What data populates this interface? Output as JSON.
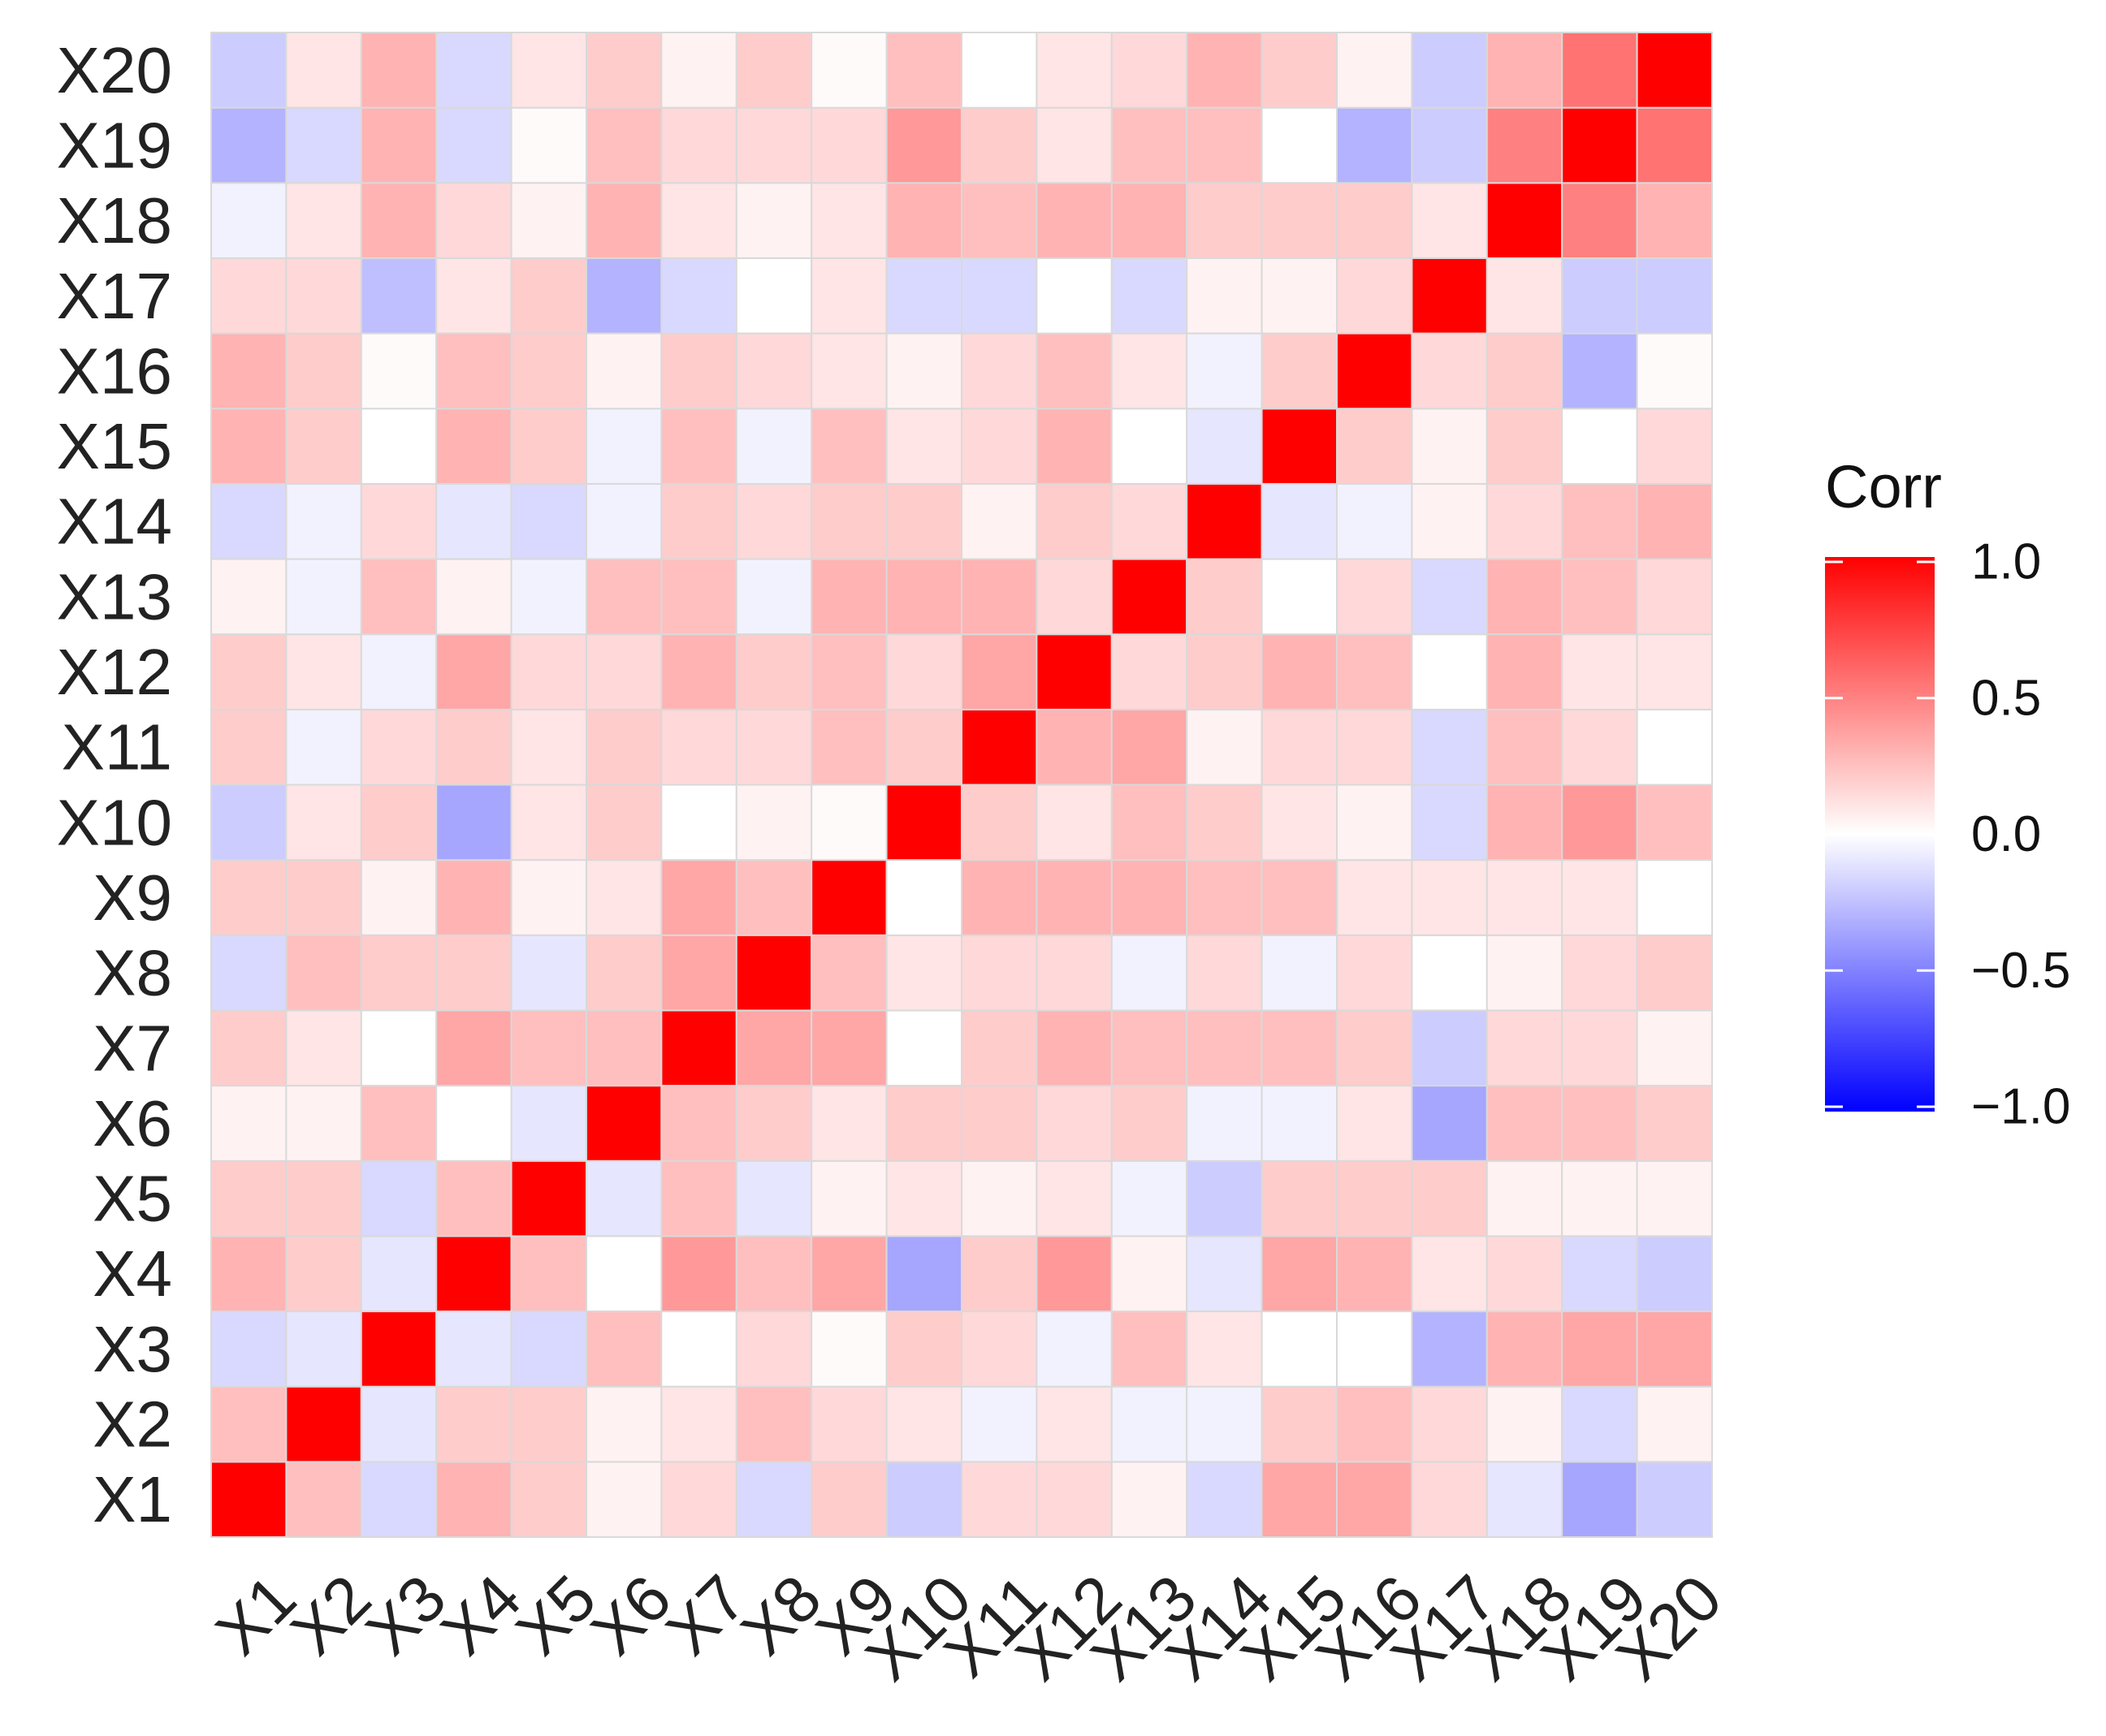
{
  "chart_data": {
    "type": "heatmap",
    "title": "",
    "xlabel": "",
    "ylabel": "",
    "x_labels": [
      "X1",
      "X2",
      "X3",
      "X4",
      "X5",
      "X6",
      "X7",
      "X8",
      "X9",
      "X10",
      "X11",
      "X12",
      "X13",
      "X14",
      "X15",
      "X16",
      "X17",
      "X18",
      "X19",
      "X20"
    ],
    "y_labels": [
      "X1",
      "X2",
      "X3",
      "X4",
      "X5",
      "X6",
      "X7",
      "X8",
      "X9",
      "X10",
      "X11",
      "X12",
      "X13",
      "X14",
      "X15",
      "X16",
      "X17",
      "X18",
      "X19",
      "X20"
    ],
    "values": [
      [
        1.0,
        0.25,
        -0.15,
        0.3,
        0.2,
        0.05,
        0.15,
        -0.15,
        0.2,
        -0.2,
        0.15,
        0.15,
        0.05,
        -0.15,
        0.35,
        0.35,
        0.15,
        -0.1,
        -0.35,
        -0.2
      ],
      [
        0.25,
        1.0,
        -0.1,
        0.2,
        0.2,
        0.05,
        0.1,
        0.25,
        0.15,
        0.1,
        -0.05,
        0.1,
        -0.05,
        -0.05,
        0.2,
        0.25,
        0.15,
        0.05,
        -0.15,
        0.05
      ],
      [
        -0.15,
        -0.1,
        1.0,
        -0.1,
        -0.15,
        0.25,
        0.0,
        0.15,
        0.02,
        0.2,
        0.15,
        -0.05,
        0.25,
        0.1,
        0.0,
        0.0,
        -0.3,
        0.3,
        0.35,
        0.35
      ],
      [
        0.3,
        0.2,
        -0.1,
        1.0,
        0.25,
        0.0,
        0.4,
        0.25,
        0.35,
        -0.35,
        0.2,
        0.4,
        0.05,
        -0.1,
        0.35,
        0.3,
        0.1,
        0.15,
        -0.15,
        -0.2
      ],
      [
        0.2,
        0.2,
        -0.15,
        0.25,
        1.0,
        -0.1,
        0.25,
        -0.1,
        0.05,
        0.1,
        0.05,
        0.1,
        -0.05,
        -0.2,
        0.2,
        0.2,
        0.2,
        0.05,
        0.05,
        0.05
      ],
      [
        0.05,
        0.05,
        0.25,
        0.0,
        -0.1,
        1.0,
        0.25,
        0.2,
        0.1,
        0.2,
        0.2,
        0.15,
        0.2,
        -0.05,
        -0.05,
        0.1,
        -0.35,
        0.25,
        0.25,
        0.2
      ],
      [
        0.2,
        0.1,
        0.0,
        0.35,
        0.25,
        0.25,
        1.0,
        0.35,
        0.35,
        0.0,
        0.2,
        0.3,
        0.25,
        0.25,
        0.25,
        0.2,
        -0.2,
        0.15,
        0.15,
        0.05
      ],
      [
        -0.15,
        0.25,
        0.2,
        0.2,
        -0.1,
        0.2,
        0.35,
        1.0,
        0.25,
        0.1,
        0.15,
        0.15,
        -0.05,
        0.15,
        -0.05,
        0.15,
        0.0,
        0.05,
        0.15,
        0.2
      ],
      [
        0.2,
        0.2,
        0.05,
        0.3,
        0.05,
        0.1,
        0.35,
        0.25,
        1.0,
        0.0,
        0.3,
        0.3,
        0.3,
        0.25,
        0.25,
        0.1,
        0.1,
        0.1,
        0.1,
        0.0
      ],
      [
        -0.2,
        0.1,
        0.2,
        -0.35,
        0.1,
        0.2,
        0.0,
        0.05,
        0.02,
        1.0,
        0.2,
        0.1,
        0.25,
        0.2,
        0.1,
        0.05,
        -0.15,
        0.3,
        0.4,
        0.25
      ],
      [
        0.2,
        -0.05,
        0.15,
        0.2,
        0.1,
        0.2,
        0.15,
        0.15,
        0.25,
        0.2,
        1.0,
        0.3,
        0.35,
        0.05,
        0.15,
        0.15,
        -0.15,
        0.25,
        0.15,
        0.0
      ],
      [
        0.2,
        0.1,
        -0.05,
        0.35,
        0.15,
        0.15,
        0.3,
        0.2,
        0.25,
        0.15,
        0.35,
        1.0,
        0.15,
        0.2,
        0.3,
        0.25,
        0.0,
        0.3,
        0.1,
        0.1
      ],
      [
        0.05,
        -0.05,
        0.25,
        0.05,
        -0.05,
        0.25,
        0.25,
        -0.05,
        0.3,
        0.3,
        0.3,
        0.15,
        1.0,
        0.2,
        0.0,
        0.15,
        -0.15,
        0.3,
        0.25,
        0.15
      ],
      [
        -0.15,
        -0.05,
        0.15,
        -0.1,
        -0.15,
        -0.05,
        0.2,
        0.15,
        0.2,
        0.2,
        0.05,
        0.2,
        0.15,
        1.0,
        -0.1,
        -0.05,
        0.05,
        0.15,
        0.25,
        0.3
      ],
      [
        0.3,
        0.2,
        0.0,
        0.3,
        0.2,
        -0.05,
        0.25,
        -0.05,
        0.25,
        0.1,
        0.15,
        0.3,
        0.0,
        -0.1,
        1.0,
        0.2,
        0.05,
        0.2,
        0.0,
        0.15
      ],
      [
        0.3,
        0.2,
        0.02,
        0.25,
        0.2,
        0.05,
        0.2,
        0.15,
        0.1,
        0.05,
        0.15,
        0.25,
        0.1,
        -0.05,
        0.2,
        1.0,
        0.15,
        0.2,
        -0.3,
        0.02
      ],
      [
        0.15,
        0.15,
        -0.25,
        0.1,
        0.2,
        -0.3,
        -0.15,
        0.0,
        0.1,
        -0.15,
        -0.15,
        0.0,
        -0.15,
        0.05,
        0.05,
        0.15,
        1.0,
        0.1,
        -0.2,
        -0.2
      ],
      [
        -0.05,
        0.1,
        0.3,
        0.15,
        0.05,
        0.3,
        0.1,
        0.05,
        0.1,
        0.3,
        0.25,
        0.3,
        0.3,
        0.2,
        0.2,
        0.2,
        0.1,
        1.0,
        0.5,
        0.3
      ],
      [
        -0.3,
        -0.15,
        0.3,
        -0.15,
        0.02,
        0.25,
        0.15,
        0.15,
        0.15,
        0.4,
        0.2,
        0.1,
        0.25,
        0.25,
        0.0,
        -0.3,
        -0.2,
        0.5,
        1.0,
        0.55
      ],
      [
        -0.2,
        0.1,
        0.3,
        -0.15,
        0.1,
        0.2,
        0.05,
        0.2,
        0.02,
        0.25,
        0.0,
        0.1,
        0.15,
        0.3,
        0.2,
        0.05,
        -0.2,
        0.3,
        0.55,
        1.0
      ]
    ],
    "value_range": [
      -1.0,
      1.0
    ],
    "color_scale": {
      "low": "#0000ff",
      "mid": "#ffffff",
      "high": "#ff0000"
    },
    "grid": true,
    "legend": {
      "title": "Corr",
      "placement": "right",
      "ticks": [
        1.0,
        0.5,
        0.0,
        -0.5,
        -1.0
      ],
      "tick_labels": [
        "1.0",
        "0.5",
        "0.0",
        "−0.5",
        "−1.0"
      ]
    }
  }
}
